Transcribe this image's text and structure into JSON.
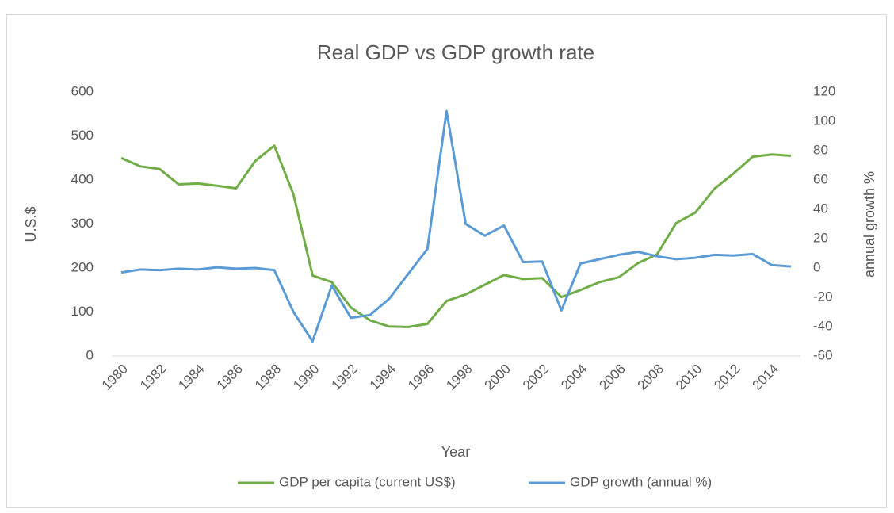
{
  "chart_data": {
    "type": "line",
    "title": "Real GDP vs GDP growth rate",
    "x_label": "Year",
    "y_label": "U.S.$",
    "y2_label": "annual growth %",
    "x": [
      1980,
      1981,
      1982,
      1983,
      1984,
      1985,
      1986,
      1987,
      1988,
      1989,
      1990,
      1991,
      1992,
      1993,
      1994,
      1995,
      1996,
      1997,
      1998,
      1999,
      2000,
      2001,
      2002,
      2003,
      2004,
      2005,
      2006,
      2007,
      2008,
      2009,
      2010,
      2011,
      2012,
      2013,
      2014,
      2015
    ],
    "xlim": [
      1980,
      2015
    ],
    "xticks": [
      1980,
      1982,
      1984,
      1986,
      1988,
      1990,
      1992,
      1994,
      1996,
      1998,
      2000,
      2002,
      2004,
      2006,
      2008,
      2010,
      2012,
      2014
    ],
    "ylim": [
      0,
      600
    ],
    "yticks": [
      0,
      100,
      200,
      300,
      400,
      500,
      600
    ],
    "y2lim": [
      -60,
      120
    ],
    "y2ticks": [
      -60,
      -40,
      -20,
      0,
      20,
      40,
      60,
      80,
      100,
      120
    ],
    "grid": false,
    "legend": "bottom",
    "series": [
      {
        "name": "GDP per capita (current US$)",
        "color": "#70ad47",
        "values": [
          450,
          431,
          425,
          390,
          392,
          387,
          381,
          443,
          478,
          367,
          183,
          168,
          110,
          81,
          67,
          66,
          73,
          125,
          140,
          162,
          184,
          175,
          177,
          134,
          150,
          168,
          179,
          211,
          231,
          302,
          326,
          380,
          415,
          453,
          458,
          455
        ]
      },
      {
        "name": "GDP growth (annual %)",
        "color": "#5b9bd5",
        "axis": "y2",
        "values": [
          -3,
          -1,
          -1.5,
          -0.5,
          -1,
          0.5,
          -0.5,
          0,
          -1.5,
          -30,
          -50,
          -12,
          -34,
          -32,
          -21,
          -4,
          13,
          107,
          30,
          22,
          29,
          4,
          4.5,
          -29,
          3,
          6,
          9,
          11,
          8,
          6,
          7,
          9,
          8.5,
          9.5,
          2,
          1
        ]
      }
    ]
  }
}
